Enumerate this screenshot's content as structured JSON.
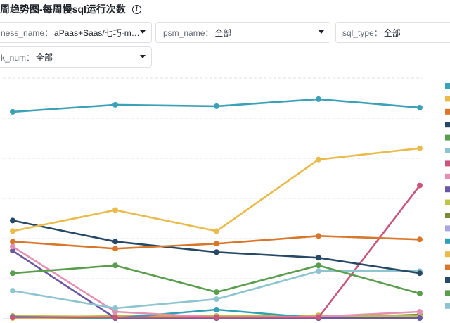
{
  "page": {
    "title": "周趋势图-每周慢sql运行次数",
    "info_icon": "info-icon"
  },
  "filters": [
    {
      "label": "ness_name：",
      "value": "aPaas+Saas/七巧-met..."
    },
    {
      "label": "psm_name：",
      "value": "全部"
    },
    {
      "label": "sql_type：",
      "value": "全部"
    },
    {
      "label": "k_num：",
      "value": "全部"
    }
  ],
  "chart_data": {
    "type": "line",
    "x": [
      1,
      2,
      3,
      4,
      5
    ],
    "ylim": [
      0,
      340
    ],
    "gridlines": true,
    "legend_position": "right",
    "series": [
      {
        "color": "#3ba1b7",
        "values": [
          295,
          305,
          303,
          313,
          301
        ]
      },
      {
        "color": "#e8bb4c",
        "values": [
          125,
          155,
          125,
          227,
          243
        ]
      },
      {
        "color": "#d8772b",
        "values": [
          110,
          100,
          107,
          118,
          113
        ]
      },
      {
        "color": "#284965",
        "values": [
          140,
          110,
          95,
          87,
          65
        ]
      },
      {
        "color": "#5a9d4d",
        "values": [
          65,
          76,
          38,
          76,
          36
        ]
      },
      {
        "color": "#8dc4cf",
        "values": [
          40,
          15,
          28,
          68,
          68
        ]
      },
      {
        "color": "#c9567a",
        "values": [
          2,
          2,
          2,
          2,
          190
        ]
      },
      {
        "color": "#e390b2",
        "values": [
          103,
          10,
          2,
          3,
          10
        ]
      },
      {
        "color": "#6b58a3",
        "values": [
          97,
          1,
          1,
          1,
          1
        ]
      },
      {
        "color": "#2fa0b5",
        "values": [
          3,
          1,
          13,
          1,
          1
        ]
      },
      {
        "color": "#bfc34a",
        "values": [
          4,
          3,
          3,
          3,
          3
        ]
      },
      {
        "color": "#b7b54c",
        "values": [
          2,
          4,
          4,
          4,
          4
        ]
      },
      {
        "color": "#f0c75a",
        "values": [
          1,
          2,
          2,
          5,
          2
        ]
      },
      {
        "color": "#7d8a3a",
        "values": [
          1,
          1,
          1,
          1,
          6
        ]
      }
    ],
    "legend_colors": [
      "#3ba1b7",
      "#e8bb4c",
      "#d8772b",
      "#284965",
      "#5a9d4d",
      "#8dc4cf",
      "#c9567a",
      "#e390b2",
      "#6b58a3",
      "#bfc34a",
      "#7d8a3a",
      "#a9a6e0",
      "#2fa0b5",
      "#e8bb4c",
      "#d8772b",
      "#284965",
      "#5a9d4d",
      "#8dc4cf"
    ]
  }
}
